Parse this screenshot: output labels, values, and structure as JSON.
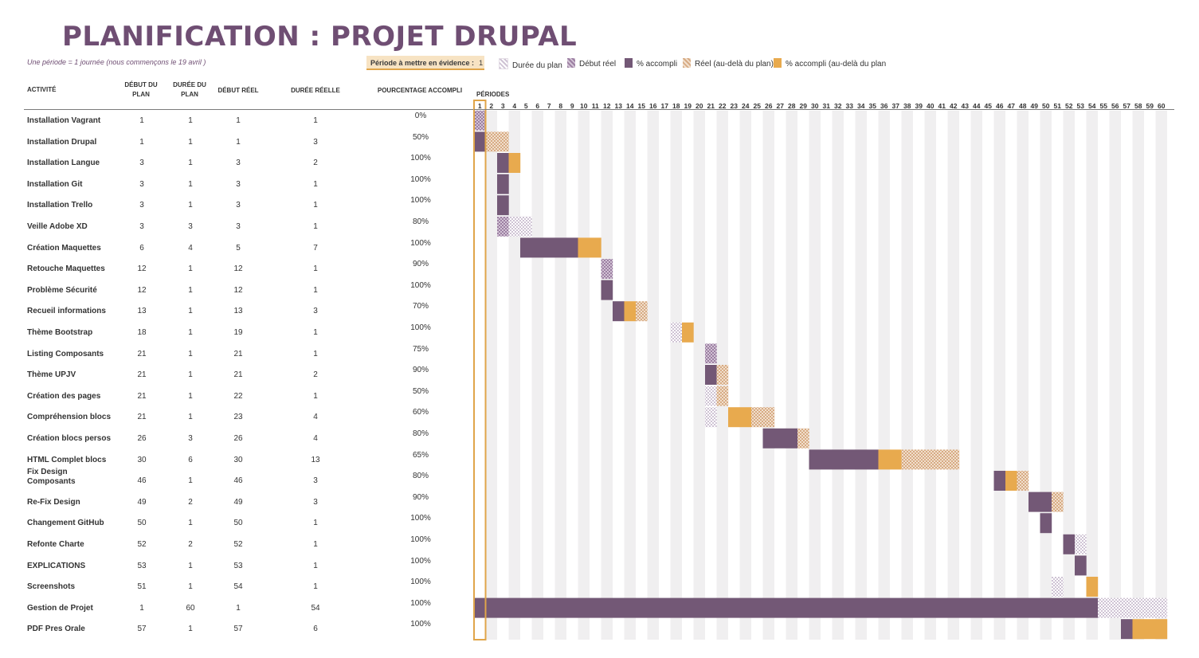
{
  "header": {
    "title": "PLANIFICATION : PROJET DRUPAL",
    "subtitle": "Une période =  1 journée (nous commençons le 19 avril )",
    "highlight_label": "Période à mettre en évidence :",
    "highlight_value": "1"
  },
  "legend": [
    {
      "label": "Durée du plan",
      "color": "#d9d0dc"
    },
    {
      "label": "Début réel",
      "color": "#b59cb8"
    },
    {
      "label": "% accompli",
      "color": "#735876"
    },
    {
      "label": "Réel (au-delà du plan)",
      "color": "#e3c2a2"
    },
    {
      "label": "% accompli (au-delà du plan",
      "color": "#e8aa4e"
    }
  ],
  "columns": {
    "activity": "ACTIVITÉ",
    "plan_start": "DÉBUT DU PLAN",
    "plan_duration": "DURÉE DU PLAN",
    "actual_start": "DÉBUT RÉEL",
    "actual_duration": "DURÉE RÉELLE",
    "percent": "POURCENTAGE ACCOMPLI",
    "periods": "PÉRIODES"
  },
  "chart_data": {
    "type": "gantt",
    "title": "PLANIFICATION : PROJET DRUPAL",
    "periods": 60,
    "highlight_period": 1,
    "rows": [
      {
        "name": "Installation Vagrant",
        "plan_start": 1,
        "plan_duration": 1,
        "actual_start": 1,
        "actual_duration": 1,
        "percent": "0%"
      },
      {
        "name": "Installation Drupal",
        "plan_start": 1,
        "plan_duration": 1,
        "actual_start": 1,
        "actual_duration": 3,
        "percent": "50%"
      },
      {
        "name": "Installation Langue",
        "plan_start": 3,
        "plan_duration": 1,
        "actual_start": 3,
        "actual_duration": 2,
        "percent": "100%"
      },
      {
        "name": "Installation Git",
        "plan_start": 3,
        "plan_duration": 1,
        "actual_start": 3,
        "actual_duration": 1,
        "percent": "100%"
      },
      {
        "name": "Installation Trello",
        "plan_start": 3,
        "plan_duration": 1,
        "actual_start": 3,
        "actual_duration": 1,
        "percent": "100%"
      },
      {
        "name": "Veille Adobe XD",
        "plan_start": 3,
        "plan_duration": 3,
        "actual_start": 3,
        "actual_duration": 1,
        "percent": "80%"
      },
      {
        "name": "Création Maquettes",
        "plan_start": 6,
        "plan_duration": 4,
        "actual_start": 5,
        "actual_duration": 7,
        "percent": "100%"
      },
      {
        "name": "Retouche Maquettes",
        "plan_start": 12,
        "plan_duration": 1,
        "actual_start": 12,
        "actual_duration": 1,
        "percent": "90%"
      },
      {
        "name": "Problème Sécurité",
        "plan_start": 12,
        "plan_duration": 1,
        "actual_start": 12,
        "actual_duration": 1,
        "percent": "100%"
      },
      {
        "name": "Recueil informations",
        "plan_start": 13,
        "plan_duration": 1,
        "actual_start": 13,
        "actual_duration": 3,
        "percent": "70%"
      },
      {
        "name": "Thème Bootstrap",
        "plan_start": 18,
        "plan_duration": 1,
        "actual_start": 19,
        "actual_duration": 1,
        "percent": "100%"
      },
      {
        "name": "Listing Composants",
        "plan_start": 21,
        "plan_duration": 1,
        "actual_start": 21,
        "actual_duration": 1,
        "percent": "75%"
      },
      {
        "name": "Thème UPJV",
        "plan_start": 21,
        "plan_duration": 1,
        "actual_start": 21,
        "actual_duration": 2,
        "percent": "90%"
      },
      {
        "name": "Création des pages",
        "plan_start": 21,
        "plan_duration": 1,
        "actual_start": 22,
        "actual_duration": 1,
        "percent": "50%"
      },
      {
        "name": "Compréhension blocs",
        "plan_start": 21,
        "plan_duration": 1,
        "actual_start": 23,
        "actual_duration": 4,
        "percent": "60%"
      },
      {
        "name": "Création blocs persos",
        "plan_start": 26,
        "plan_duration": 3,
        "actual_start": 26,
        "actual_duration": 4,
        "percent": "80%"
      },
      {
        "name": "HTML Complet blocs",
        "plan_start": 30,
        "plan_duration": 6,
        "actual_start": 30,
        "actual_duration": 13,
        "percent": "65%"
      },
      {
        "name": "Fix Design Composants",
        "plan_start": 46,
        "plan_duration": 1,
        "actual_start": 46,
        "actual_duration": 3,
        "percent": "80%"
      },
      {
        "name": "Re-Fix Design",
        "plan_start": 49,
        "plan_duration": 2,
        "actual_start": 49,
        "actual_duration": 3,
        "percent": "90%"
      },
      {
        "name": "Changement GitHub",
        "plan_start": 50,
        "plan_duration": 1,
        "actual_start": 50,
        "actual_duration": 1,
        "percent": "100%"
      },
      {
        "name": "Refonte Charte",
        "plan_start": 52,
        "plan_duration": 2,
        "actual_start": 52,
        "actual_duration": 1,
        "percent": "100%"
      },
      {
        "name": "EXPLICATIONS",
        "plan_start": 53,
        "plan_duration": 1,
        "actual_start": 53,
        "actual_duration": 1,
        "percent": "100%"
      },
      {
        "name": "Screenshots",
        "plan_start": 51,
        "plan_duration": 1,
        "actual_start": 54,
        "actual_duration": 1,
        "percent": "100%"
      },
      {
        "name": "Gestion de Projet",
        "plan_start": 1,
        "plan_duration": 60,
        "actual_start": 1,
        "actual_duration": 54,
        "percent": "100%"
      },
      {
        "name": "PDF Pres Orale",
        "plan_start": 57,
        "plan_duration": 1,
        "actual_start": 57,
        "actual_duration": 6,
        "percent": "100%"
      }
    ]
  },
  "colors": {
    "title": "#6f4e73",
    "plan": "#d9d0dc",
    "actual_start": "#b59cb8",
    "complete": "#735876",
    "actual_beyond": "#e3c2a2",
    "complete_beyond": "#e8aa4e",
    "grid_shade": "#f0eff0",
    "highlight": "#e0a54a"
  }
}
